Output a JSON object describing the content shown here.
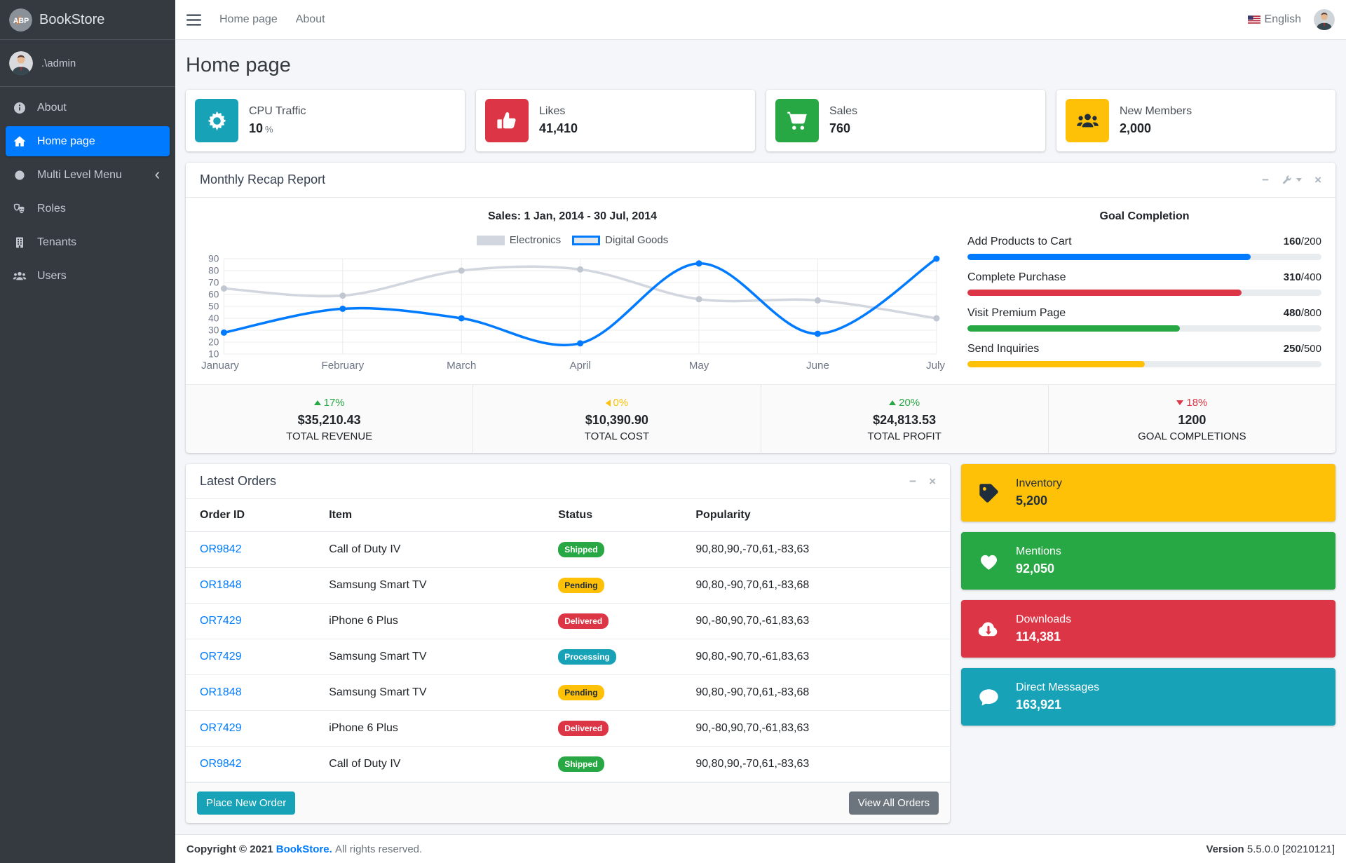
{
  "brand": {
    "logo_text": "ABP",
    "name": "BookStore"
  },
  "sidebar": {
    "user": ".\\admin",
    "items": [
      {
        "label": "About"
      },
      {
        "label": "Home page",
        "active": true
      },
      {
        "label": "Multi Level Menu",
        "has_children": true
      },
      {
        "label": "Roles"
      },
      {
        "label": "Tenants"
      },
      {
        "label": "Users"
      }
    ]
  },
  "navbar": {
    "links": [
      "Home page",
      "About"
    ],
    "language": "English"
  },
  "page": {
    "title": "Home page"
  },
  "info_boxes": [
    {
      "label": "CPU Traffic",
      "value": "10",
      "unit": "%",
      "color": "#17a2b8",
      "icon": "gear-icon"
    },
    {
      "label": "Likes",
      "value": "41,410",
      "unit": "",
      "color": "#dc3545",
      "icon": "thumbs-up-icon"
    },
    {
      "label": "Sales",
      "value": "760",
      "unit": "",
      "color": "#28a745",
      "icon": "cart-icon"
    },
    {
      "label": "New Members",
      "value": "2,000",
      "unit": "",
      "color": "#ffc107",
      "icon": "users-icon"
    }
  ],
  "recap": {
    "title": "Monthly Recap Report",
    "goal_title": "Goal Completion",
    "goals": [
      {
        "label": "Add Products to Cart",
        "value": 160,
        "total": 200,
        "value_str": "160",
        "total_str": "/200",
        "color": "#007bff"
      },
      {
        "label": "Complete Purchase",
        "value": 310,
        "total": 400,
        "value_str": "310",
        "total_str": "/400",
        "color": "#dc3545"
      },
      {
        "label": "Visit Premium Page",
        "value": 480,
        "total": 800,
        "value_str": "480",
        "total_str": "/800",
        "color": "#28a745"
      },
      {
        "label": "Send Inquiries",
        "value": 250,
        "total": 500,
        "value_str": "250",
        "total_str": "/500",
        "color": "#ffc107"
      }
    ],
    "stats": [
      {
        "pct": "17%",
        "dir": "up",
        "color": "#28a745",
        "value": "$35,210.43",
        "desc": "TOTAL REVENUE"
      },
      {
        "pct": "0%",
        "dir": "left",
        "color": "#ffc107",
        "value": "$10,390.90",
        "desc": "TOTAL COST"
      },
      {
        "pct": "20%",
        "dir": "up",
        "color": "#28a745",
        "value": "$24,813.53",
        "desc": "TOTAL PROFIT"
      },
      {
        "pct": "18%",
        "dir": "down",
        "color": "#dc3545",
        "value": "1200",
        "desc": "GOAL COMPLETIONS"
      }
    ]
  },
  "chart_data": {
    "type": "line",
    "title": "Sales: 1 Jan, 2014 - 30 Jul, 2014",
    "x": [
      "January",
      "February",
      "March",
      "April",
      "May",
      "June",
      "July"
    ],
    "y_ticks": [
      90,
      80,
      70,
      60,
      50,
      40,
      30,
      20,
      10
    ],
    "ylim": [
      10,
      90
    ],
    "grid": true,
    "legend_position": "top",
    "series": [
      {
        "name": "Electronics",
        "color": "#d2d6de",
        "point_color": "#c1c7d1",
        "legend_fill": "#d2d6de",
        "values": [
          65,
          59,
          80,
          81,
          56,
          55,
          40
        ]
      },
      {
        "name": "Digital Goods",
        "color": "#007bff",
        "point_color": "#007bff",
        "legend_fill": "#e3e7ec",
        "values": [
          28,
          48,
          40,
          19,
          86,
          27,
          90
        ]
      }
    ]
  },
  "orders": {
    "title": "Latest Orders",
    "headers": [
      "Order ID",
      "Item",
      "Status",
      "Popularity"
    ],
    "rows": [
      {
        "id": "OR9842",
        "item": "Call of Duty IV",
        "status": "Shipped",
        "status_color": "success",
        "popularity": "90,80,90,-70,61,-83,63"
      },
      {
        "id": "OR1848",
        "item": "Samsung Smart TV",
        "status": "Pending",
        "status_color": "warning",
        "popularity": "90,80,-90,70,61,-83,68"
      },
      {
        "id": "OR7429",
        "item": "iPhone 6 Plus",
        "status": "Delivered",
        "status_color": "danger",
        "popularity": "90,-80,90,70,-61,83,63"
      },
      {
        "id": "OR7429",
        "item": "Samsung Smart TV",
        "status": "Processing",
        "status_color": "info",
        "popularity": "90,80,-90,70,-61,83,63"
      },
      {
        "id": "OR1848",
        "item": "Samsung Smart TV",
        "status": "Pending",
        "status_color": "warning",
        "popularity": "90,80,-90,70,61,-83,68"
      },
      {
        "id": "OR7429",
        "item": "iPhone 6 Plus",
        "status": "Delivered",
        "status_color": "danger",
        "popularity": "90,-80,90,70,-61,83,63"
      },
      {
        "id": "OR9842",
        "item": "Call of Duty IV",
        "status": "Shipped",
        "status_color": "success",
        "popularity": "90,80,90,-70,61,-83,63"
      }
    ],
    "place_order_label": "Place New Order",
    "view_all_label": "View All Orders"
  },
  "side_boxes": [
    {
      "label": "Inventory",
      "value": "5,200",
      "color": "#ffc107",
      "dark_text": true,
      "icon": "tag-icon"
    },
    {
      "label": "Mentions",
      "value": "92,050",
      "color": "#28a745",
      "dark_text": false,
      "icon": "heart-icon"
    },
    {
      "label": "Downloads",
      "value": "114,381",
      "color": "#dc3545",
      "dark_text": false,
      "icon": "cloud-download-icon"
    },
    {
      "label": "Direct Messages",
      "value": "163,921",
      "color": "#17a2b8",
      "dark_text": false,
      "icon": "comment-icon"
    }
  ],
  "footer": {
    "copyright_bold": "Copyright © 2021",
    "brand_link": "BookStore.",
    "rights": "All rights reserved.",
    "version_label": "Version",
    "version": "5.5.0.0 [20210121]"
  }
}
